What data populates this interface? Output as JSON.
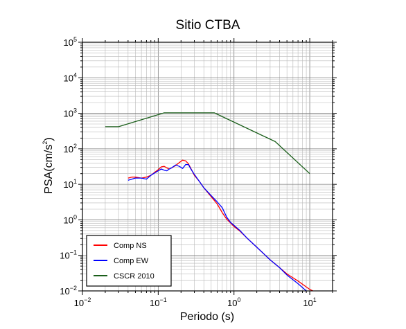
{
  "chart_data": {
    "type": "line",
    "title": "Sitio CTBA",
    "xlabel": "Periodo (s)",
    "ylabel_base": "PSA(cm/s",
    "ylabel_sup": "2",
    "ylabel_end": ")",
    "x_scale": "log",
    "y_scale": "log",
    "xlim": [
      0.01,
      20
    ],
    "ylim": [
      0.01,
      100000
    ],
    "grid": true,
    "legend_position": "bottom-left",
    "x_ticks": [
      {
        "value": 0.01,
        "base": "10",
        "exp": "−2"
      },
      {
        "value": 0.1,
        "base": "10",
        "exp": "−1"
      },
      {
        "value": 1,
        "base": "10",
        "exp": "0"
      },
      {
        "value": 10,
        "base": "10",
        "exp": "1"
      }
    ],
    "y_ticks": [
      {
        "value": 0.01,
        "base": "10",
        "exp": "−2"
      },
      {
        "value": 0.1,
        "base": "10",
        "exp": "−1"
      },
      {
        "value": 1,
        "base": "10",
        "exp": "0"
      },
      {
        "value": 10,
        "base": "10",
        "exp": "1"
      },
      {
        "value": 100,
        "base": "10",
        "exp": "2"
      },
      {
        "value": 1000,
        "base": "10",
        "exp": "3"
      },
      {
        "value": 10000,
        "base": "10",
        "exp": "4"
      },
      {
        "value": 100000,
        "base": "10",
        "exp": "5"
      }
    ],
    "series": [
      {
        "name": "Comp NS",
        "color": "#ff0000",
        "x": [
          0.04,
          0.045,
          0.05,
          0.06,
          0.07,
          0.08,
          0.09,
          0.1,
          0.11,
          0.12,
          0.13,
          0.14,
          0.15,
          0.17,
          0.19,
          0.21,
          0.23,
          0.25,
          0.27,
          0.3,
          0.35,
          0.4,
          0.5,
          0.6,
          0.7,
          0.8,
          0.9,
          1.0,
          1.2,
          1.5,
          2.0,
          3.0,
          4.0,
          5.0,
          7.0,
          10.0,
          11.0
        ],
        "y": [
          15,
          16,
          16,
          15,
          16,
          18,
          22,
          26,
          31,
          32,
          29,
          27,
          29,
          34,
          41,
          48,
          46,
          38,
          28,
          18,
          12,
          8,
          4.5,
          2.8,
          1.6,
          1.05,
          0.82,
          0.65,
          0.48,
          0.3,
          0.17,
          0.075,
          0.045,
          0.03,
          0.019,
          0.011,
          0.01
        ]
      },
      {
        "name": "Comp EW",
        "color": "#0000ff",
        "x": [
          0.04,
          0.045,
          0.05,
          0.06,
          0.07,
          0.08,
          0.09,
          0.1,
          0.11,
          0.12,
          0.13,
          0.14,
          0.15,
          0.17,
          0.19,
          0.21,
          0.23,
          0.25,
          0.27,
          0.3,
          0.35,
          0.4,
          0.5,
          0.6,
          0.7,
          0.8,
          0.9,
          1.0,
          1.2,
          1.5,
          2.0,
          3.0,
          4.0,
          5.0,
          7.0,
          9.0
        ],
        "y": [
          13,
          14,
          15,
          15,
          14,
          18,
          21,
          24,
          27,
          25,
          24,
          27,
          29,
          35,
          32,
          28,
          36,
          36,
          27,
          19,
          12,
          8,
          4.8,
          3.2,
          2.2,
          1.2,
          0.85,
          0.7,
          0.5,
          0.3,
          0.17,
          0.075,
          0.045,
          0.028,
          0.016,
          0.01
        ]
      },
      {
        "name": "CSCR 2010",
        "color": "#1a5e1a",
        "x": [
          0.02,
          0.03,
          0.12,
          0.55,
          3.5,
          10.0
        ],
        "y": [
          420,
          420,
          1030,
          1030,
          160,
          20
        ]
      }
    ]
  }
}
